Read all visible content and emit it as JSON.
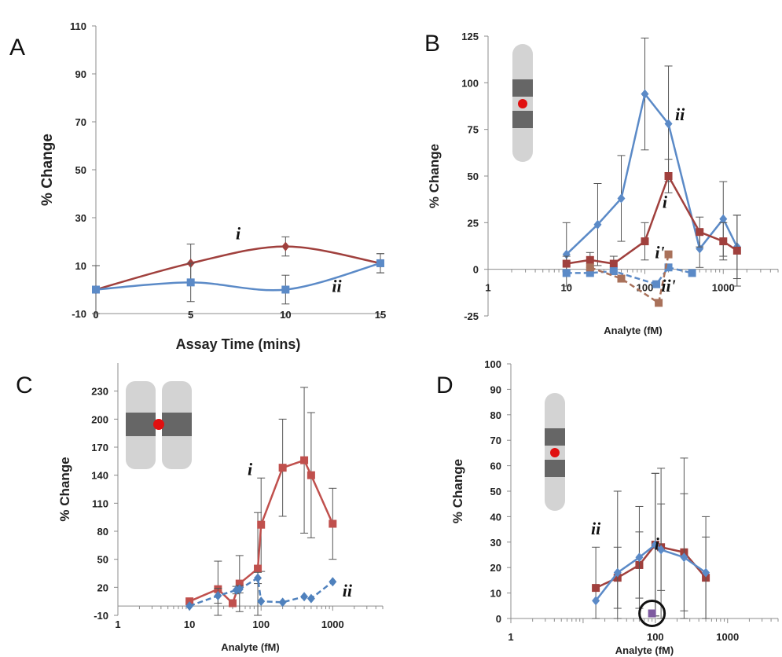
{
  "chart_data": [
    {
      "panel": "A",
      "type": "line",
      "xlabel": "Assay Time (mins)",
      "ylabel": "% Change",
      "xscale": "linear",
      "xlim": [
        0,
        15
      ],
      "ylim": [
        -10,
        110
      ],
      "xticks": [
        "0",
        "5",
        "10",
        "15"
      ],
      "yticks": [
        "-10",
        "10",
        "30",
        "50",
        "70",
        "90",
        "110"
      ],
      "smooth": true,
      "series": [
        {
          "name": "i",
          "color": "#a0403d",
          "marker": "diamond",
          "dashed": false,
          "x": [
            0,
            5,
            10,
            15
          ],
          "y": [
            0,
            11,
            18,
            11
          ],
          "err": [
            0,
            8,
            4,
            4
          ]
        },
        {
          "name": "ii",
          "color": "#5b8ac7",
          "marker": "square",
          "dashed": false,
          "x": [
            0,
            5,
            10,
            15
          ],
          "y": [
            0,
            3,
            0,
            11
          ],
          "err": [
            10,
            8,
            6,
            4
          ]
        }
      ],
      "labels": [
        {
          "text": "i",
          "x": 7.5,
          "y": 21
        },
        {
          "text": "ii",
          "x": 12.7,
          "y": -1
        }
      ]
    },
    {
      "panel": "B",
      "type": "line",
      "xlabel": "Analyte (fM)",
      "ylabel": "% Change",
      "xscale": "log",
      "xlim": [
        1,
        5000
      ],
      "ylim": [
        -25,
        125
      ],
      "xticks": [
        "1",
        "10",
        "100",
        "1000"
      ],
      "yticks": [
        "-25",
        "0",
        "25",
        "50",
        "75",
        "100",
        "125"
      ],
      "smooth": false,
      "series": [
        {
          "name": "ii",
          "color": "#5b8ac7",
          "marker": "diamond",
          "dashed": false,
          "x": [
            10,
            25,
            50,
            100,
            200,
            500,
            1000,
            1500
          ],
          "y": [
            8,
            24,
            38,
            94,
            78,
            11,
            27,
            12
          ],
          "err": [
            17,
            22,
            23,
            30,
            31,
            10,
            20,
            17
          ]
        },
        {
          "name": "i",
          "color": "#a0403d",
          "marker": "square",
          "dashed": false,
          "x": [
            10,
            20,
            40,
            100,
            200,
            500,
            1000,
            1500
          ],
          "y": [
            3,
            5,
            3,
            15,
            50,
            20,
            15,
            10
          ],
          "err": [
            4,
            4,
            4,
            10,
            9,
            8,
            10,
            19
          ]
        },
        {
          "name": "ii'",
          "color": "#5b8ac7",
          "marker": "square",
          "dashed": true,
          "x": [
            10,
            20,
            40,
            140,
            200,
            400
          ],
          "y": [
            -2,
            -2,
            -1,
            -8,
            1,
            -2
          ],
          "err": [
            0,
            0,
            0,
            0,
            0,
            0
          ]
        },
        {
          "name": "i'",
          "color": "#a9715a",
          "marker": "square",
          "dashed": true,
          "x": [
            20,
            50,
            150,
            200
          ],
          "y": [
            1,
            -5,
            -18,
            8
          ],
          "err": [
            0,
            0,
            0,
            0
          ]
        }
      ],
      "labels": [
        {
          "text": "ii",
          "x": 280,
          "y": 80
        },
        {
          "text": "i",
          "x": 180,
          "y": 33
        },
        {
          "text": "i'",
          "x": 155,
          "y": 6
        },
        {
          "text": "ii'",
          "x": 200,
          "y": -12
        }
      ],
      "inset": "probe-single"
    },
    {
      "panel": "C",
      "type": "line",
      "xlabel": "Analyte (fM)",
      "ylabel": "% Change",
      "xscale": "log",
      "xlim": [
        1,
        5000
      ],
      "ylim": [
        -10,
        260
      ],
      "xticks": [
        "1",
        "10",
        "100",
        "1000"
      ],
      "yticks": [
        "-10",
        "20",
        "50",
        "80",
        "110",
        "140",
        "170",
        "200",
        "230"
      ],
      "smooth": false,
      "series": [
        {
          "name": "i",
          "color": "#c0504d",
          "marker": "square",
          "dashed": false,
          "x": [
            10,
            25,
            40,
            50,
            90,
            100,
            200,
            400,
            500,
            1000
          ],
          "y": [
            5,
            18,
            3,
            24,
            40,
            87,
            148,
            156,
            140,
            88
          ],
          "err": [
            0,
            30,
            0,
            30,
            60,
            50,
            52,
            78,
            67,
            38
          ]
        },
        {
          "name": "ii",
          "color": "#4f81bd",
          "marker": "diamond",
          "dashed": true,
          "x": [
            10,
            25,
            45,
            50,
            90,
            100,
            200,
            400,
            500,
            1000
          ],
          "y": [
            0,
            11,
            17,
            18,
            30,
            5,
            4,
            10,
            8,
            26
          ],
          "err": [
            0,
            8,
            4,
            4,
            6,
            0,
            0,
            0,
            0,
            0
          ]
        }
      ],
      "labels": [
        {
          "text": "i",
          "x": 70,
          "y": 140
        },
        {
          "text": "ii",
          "x": 1600,
          "y": 10
        }
      ],
      "inset": "probe-pair"
    },
    {
      "panel": "D",
      "type": "line",
      "xlabel": "Analyte (fM)",
      "ylabel": "% Change",
      "xscale": "log",
      "xlim": [
        1,
        5000
      ],
      "ylim": [
        0,
        100
      ],
      "xticks": [
        "1",
        "100",
        "1000"
      ],
      "yticks": [
        "0",
        "10",
        "20",
        "30",
        "40",
        "50",
        "60",
        "70",
        "80",
        "90",
        "100"
      ],
      "smooth": false,
      "series": [
        {
          "name": "i",
          "color": "#a0403d",
          "marker": "square",
          "dashed": false,
          "x": [
            15,
            30,
            60,
            100,
            120,
            250,
            500
          ],
          "y": [
            12,
            16,
            21,
            29,
            28,
            26,
            16
          ],
          "err": [
            16,
            12,
            13,
            28,
            17,
            23,
            16
          ]
        },
        {
          "name": "ii",
          "color": "#5b8ac7",
          "marker": "diamond",
          "dashed": false,
          "x": [
            15,
            30,
            60,
            100,
            120,
            250,
            500
          ],
          "y": [
            7,
            18,
            24,
            29,
            27,
            24,
            18
          ],
          "err": [
            0,
            32,
            20,
            28,
            32,
            39,
            22
          ]
        },
        {
          "name": "",
          "color": "#7e5aa0",
          "marker": "square",
          "dashed": false,
          "x": [
            90
          ],
          "y": [
            2
          ],
          "err": [
            0
          ]
        }
      ],
      "labels": [
        {
          "text": "ii",
          "x": 15,
          "y": 33
        },
        {
          "text": "i",
          "x": 105,
          "y": 27
        }
      ],
      "circle_marker": {
        "x": 90,
        "y": 2
      },
      "inset": "probe-single"
    }
  ]
}
